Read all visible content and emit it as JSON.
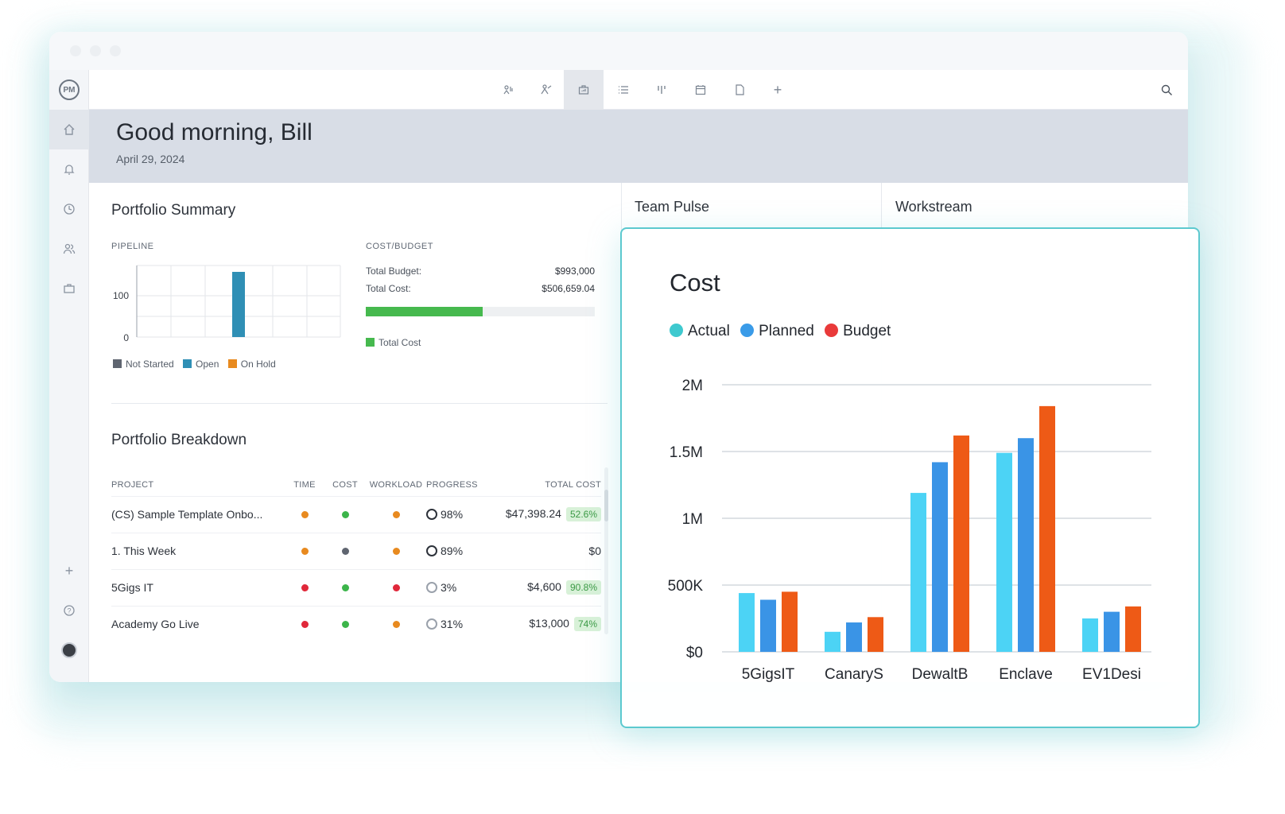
{
  "app": {
    "logo": "PM"
  },
  "greeting": {
    "title": "Good morning, Bill",
    "date": "April 29, 2024"
  },
  "portfolio_summary": {
    "title": "Portfolio Summary",
    "pipeline": {
      "label": "PIPELINE",
      "y_ticks": [
        "100",
        "0"
      ],
      "legend": [
        {
          "label": "Not Started",
          "color": "#5f6570"
        },
        {
          "label": "Open",
          "color": "#2f8fb5"
        },
        {
          "label": "On Hold",
          "color": "#e88a1f"
        }
      ]
    },
    "cost_budget": {
      "label": "COST/BUDGET",
      "total_budget_label": "Total Budget:",
      "total_budget": "$993,000",
      "total_cost_label": "Total Cost:",
      "total_cost": "$506,659.04",
      "progress_fraction": 0.51,
      "legend": "Total Cost"
    }
  },
  "portfolio_breakdown": {
    "title": "Portfolio Breakdown",
    "columns": [
      "PROJECT",
      "TIME",
      "COST",
      "WORKLOAD",
      "PROGRESS",
      "TOTAL COST"
    ],
    "rows": [
      {
        "project": "(CS) Sample Template Onbo...",
        "time": "#e88a1f",
        "cost": "#3cb54a",
        "workload": "#e88a1f",
        "progress": "98%",
        "total": "$47,398.24",
        "pct": "52.6%"
      },
      {
        "project": "1. This Week",
        "time": "#e88a1f",
        "cost": "#5f6570",
        "workload": "#e88a1f",
        "progress": "89%",
        "total": "$0",
        "pct": ""
      },
      {
        "project": "5Gigs IT",
        "time": "#e0283a",
        "cost": "#3cb54a",
        "workload": "#e0283a",
        "progress": "3%",
        "total": "$4,600",
        "pct": "90.8%"
      },
      {
        "project": "Academy Go Live",
        "time": "#e0283a",
        "cost": "#3cb54a",
        "workload": "#e88a1f",
        "progress": "31%",
        "total": "$13,000",
        "pct": "74%"
      }
    ]
  },
  "team_pulse": {
    "title": "Team Pulse"
  },
  "workstream": {
    "title": "Workstream"
  },
  "cost_card": {
    "title": "Cost",
    "legend": [
      {
        "label": "Actual",
        "color": "#3ec9cf"
      },
      {
        "label": "Planned",
        "color": "#3a9be8"
      },
      {
        "label": "Budget",
        "color": "#e93a3a"
      }
    ]
  },
  "chart_data": [
    {
      "type": "bar",
      "title": "",
      "categories": [
        "Not Started",
        "Open",
        "On Hold"
      ],
      "values": [
        0,
        100,
        0
      ],
      "ylim": [
        0,
        100
      ],
      "y_ticks": [
        0,
        100
      ]
    },
    {
      "type": "bar",
      "title": "Cost",
      "categories": [
        "5GigsIT",
        "CanaryS",
        "DewaltB",
        "Enclave",
        "EV1Desi"
      ],
      "y_ticks": [
        "$0",
        "500K",
        "1M",
        "1.5M",
        "2M"
      ],
      "ylim": [
        0,
        2000000
      ],
      "series": [
        {
          "name": "Actual",
          "color": "#4cd3f5",
          "values": [
            440000,
            150000,
            1190000,
            1490000,
            250000
          ]
        },
        {
          "name": "Planned",
          "color": "#3a94e6",
          "values": [
            390000,
            220000,
            1420000,
            1600000,
            300000
          ]
        },
        {
          "name": "Budget",
          "color": "#ee5a16",
          "values": [
            450000,
            260000,
            1620000,
            1840000,
            340000
          ]
        }
      ],
      "grid": true,
      "legend": "top-left"
    }
  ]
}
